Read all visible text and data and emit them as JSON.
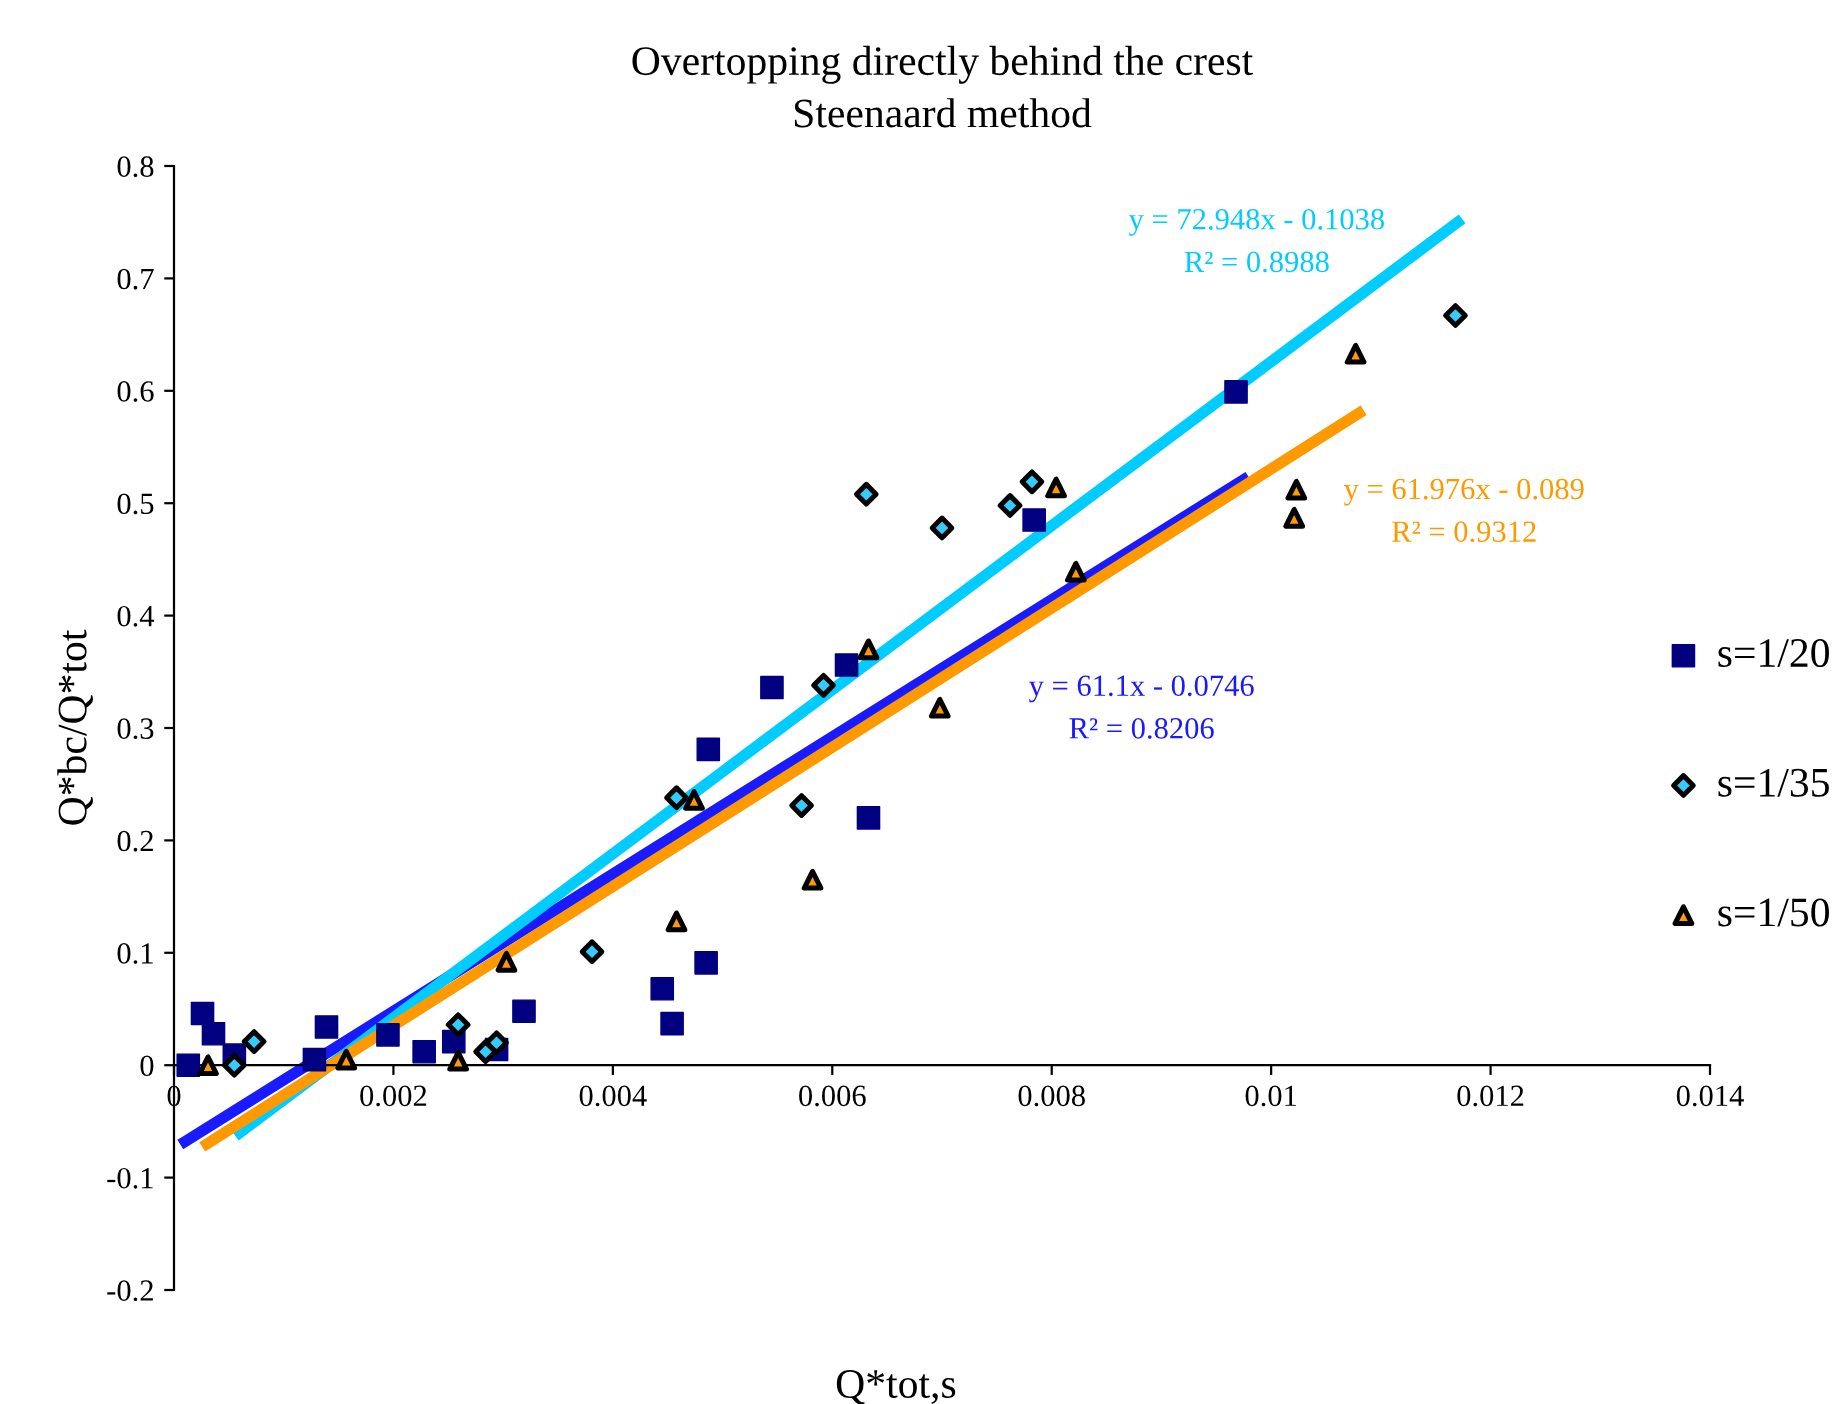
{
  "chart_data": {
    "type": "scatter",
    "title": "Overtopping directly behind the crest\nSteenaard method",
    "xlabel": "Q*tot,s",
    "ylabel": "Q*bc/Q*tot",
    "series": [
      {
        "name": "s=1/20",
        "color": "#000080",
        "marker": "square",
        "x": [
          0.00013,
          0.00026,
          0.00036,
          0.00055,
          0.00128,
          0.00139,
          0.00195,
          0.00228,
          0.00255,
          0.00294,
          0.00319,
          0.00445,
          0.00454,
          0.00485,
          0.00487,
          0.00545,
          0.00613,
          0.00633,
          0.00784,
          0.00968
        ],
        "values": [
          0,
          0.046,
          0.028,
          0.009,
          0.005,
          0.034,
          0.027,
          0.012,
          0.021,
          0.014,
          0.048,
          0.068,
          0.037,
          0.091,
          0.281,
          0.336,
          0.356,
          0.22,
          0.485,
          0.599
        ]
      },
      {
        "name": "s=1/35",
        "color": "#33ccff",
        "marker": "diamond",
        "x": [
          0.00055,
          0.00073,
          0.00259,
          0.00284,
          0.00294,
          0.00381,
          0.00458,
          0.00572,
          0.00592,
          0.00631,
          0.007,
          0.00762,
          0.00782,
          0.01168
        ],
        "values": [
          0,
          0.021,
          0.036,
          0.012,
          0.02,
          0.101,
          0.238,
          0.231,
          0.338,
          0.508,
          0.478,
          0.498,
          0.519,
          0.667
        ]
      },
      {
        "name": "s=1/50",
        "color": "#ff9900",
        "marker": "triangle",
        "x": [
          0.00031,
          0.00157,
          0.00259,
          0.00303,
          0.00458,
          0.00474,
          0.00582,
          0.00633,
          0.00698,
          0.00804,
          0.00822,
          0.01021,
          0.01023,
          0.01077
        ],
        "values": [
          0,
          0.005,
          0.004,
          0.092,
          0.128,
          0.236,
          0.165,
          0.37,
          0.318,
          0.514,
          0.439,
          0.487,
          0.512,
          0.633
        ]
      },
      {
        "type": "line",
        "color": "#1a1aff",
        "x": [
          0.0001,
          0.00975
        ],
        "values": [
          -0.068,
          0.521
        ]
      },
      {
        "type": "line",
        "color": "#00ccff",
        "x": [
          0.0006,
          0.0117
        ],
        "values": [
          -0.06,
          0.75
        ]
      },
      {
        "type": "line",
        "color": "#ff9900",
        "x": [
          0.0003,
          0.0108
        ],
        "values": [
          -0.07,
          0.58
        ]
      }
    ],
    "annotations": [
      "y = 72.948x - 0.1038\nR² = 0.8988",
      "y = 61.976x - 0.089\nR² = 0.9312",
      "y = 61.1x - 0.0746\nR² = 0.8206"
    ],
    "xlim": [
      0,
      0.014
    ],
    "ylim": [
      -0.2,
      0.8
    ],
    "xticks": [
      0,
      0.002,
      0.004,
      0.006,
      0.008,
      0.01,
      0.012,
      0.014
    ],
    "yticks": [
      {
        "value": -0.2,
        "label": "-0.2"
      },
      {
        "value": -0.1,
        "label": "-0.1"
      },
      0,
      0.1,
      0.2,
      0.3,
      0.4,
      0.5,
      0.6,
      0.7,
      0.8
    ],
    "legend": "right",
    "grid": false
  }
}
